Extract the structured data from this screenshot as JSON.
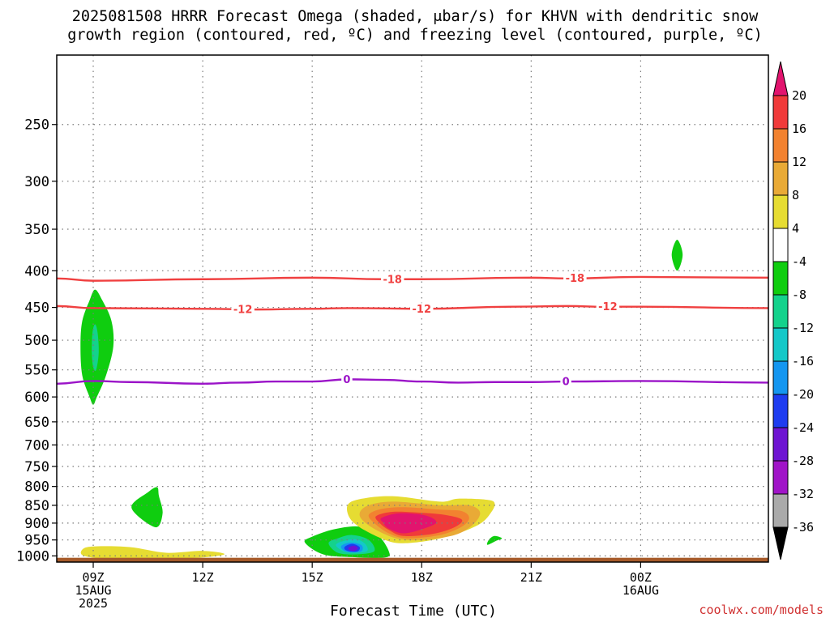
{
  "title_line1": "2025081508 HRRR Forecast Omega (shaded, μbar/s) for KHVN with dendritic snow",
  "title_line2": "growth region (contoured, red, ºC) and freezing level (contoured, purple, ºC)",
  "x_axis_title": "Forecast Time (UTC)",
  "credit": "coolwx.com/models",
  "chart_data": {
    "type": "heatmap",
    "title": "2025081508 HRRR Forecast Omega (shaded, μbar/s) for KHVN with dendritic snow growth region (contoured, red, ºC) and freezing level (contoured, purple, ºC)",
    "xlabel": "Forecast Time (UTC)",
    "ylabel": "",
    "x_range_hours_utc": [
      8,
      27.5
    ],
    "x_ticks": [
      {
        "hour": 9,
        "label": "09Z",
        "sub": [
          "15AUG",
          "2025"
        ]
      },
      {
        "hour": 12,
        "label": "12Z",
        "sub": []
      },
      {
        "hour": 15,
        "label": "15Z",
        "sub": []
      },
      {
        "hour": 18,
        "label": "18Z",
        "sub": []
      },
      {
        "hour": 21,
        "label": "21Z",
        "sub": []
      },
      {
        "hour": 24,
        "label": "00Z",
        "sub": [
          "16AUG"
        ]
      }
    ],
    "y_scale": "log-pressure, inverted",
    "y_range_hpa": [
      1020,
      200
    ],
    "y_ticks": [
      250,
      300,
      350,
      400,
      450,
      500,
      550,
      600,
      650,
      700,
      750,
      800,
      850,
      900,
      950,
      1000
    ],
    "grid": true,
    "colorbar": {
      "labels": [
        20,
        16,
        12,
        8,
        4,
        -4,
        -8,
        -12,
        -16,
        -20,
        -24,
        -28,
        -32,
        -36
      ],
      "bins": [
        {
          "from": 20,
          "to": 30,
          "color": "#e2146e"
        },
        {
          "from": 16,
          "to": 20,
          "color": "#f03a3a"
        },
        {
          "from": 12,
          "to": 16,
          "color": "#f28230"
        },
        {
          "from": 8,
          "to": 12,
          "color": "#e9aa36"
        },
        {
          "from": 4,
          "to": 8,
          "color": "#e6dc32"
        },
        {
          "from": -4,
          "to": 4,
          "color": "#ffffff"
        },
        {
          "from": -8,
          "to": -4,
          "color": "#0fcd0f"
        },
        {
          "from": -12,
          "to": -8,
          "color": "#14d28c"
        },
        {
          "from": -16,
          "to": -12,
          "color": "#14c8c8"
        },
        {
          "from": -20,
          "to": -16,
          "color": "#1496f0"
        },
        {
          "from": -24,
          "to": -20,
          "color": "#1e3cf0"
        },
        {
          "from": -28,
          "to": -24,
          "color": "#6e14d2"
        },
        {
          "from": -32,
          "to": -28,
          "color": "#a014c8"
        },
        {
          "from": -36,
          "to": -32,
          "color": "#aaaaaa"
        },
        {
          "from": -46,
          "to": -36,
          "color": "#000000"
        }
      ]
    },
    "shaded_regions": [
      {
        "name": "green-column-09z",
        "level": -6,
        "points": [
          [
            8.9,
            600
          ],
          [
            9.0,
            615
          ],
          [
            9.1,
            600
          ],
          [
            9.35,
            560
          ],
          [
            9.55,
            510
          ],
          [
            9.5,
            470
          ],
          [
            9.25,
            440
          ],
          [
            9.05,
            425
          ],
          [
            8.9,
            440
          ],
          [
            8.7,
            470
          ],
          [
            8.65,
            510
          ],
          [
            8.7,
            560
          ]
        ]
      },
      {
        "name": "teal-core-09z",
        "level": -10,
        "points": [
          [
            9.0,
            545
          ],
          [
            9.08,
            550
          ],
          [
            9.15,
            520
          ],
          [
            9.12,
            488
          ],
          [
            9.05,
            475
          ],
          [
            8.98,
            488
          ],
          [
            8.96,
            520
          ]
        ]
      },
      {
        "name": "green-blob-850",
        "level": -6,
        "points": [
          [
            10.05,
            857
          ],
          [
            10.7,
            912
          ],
          [
            10.9,
            872
          ],
          [
            10.8,
            825
          ],
          [
            10.75,
            802
          ],
          [
            10.5,
            815
          ]
        ]
      },
      {
        "name": "green-blob-400",
        "level": -6,
        "points": [
          [
            25.0,
            362
          ],
          [
            25.15,
            380
          ],
          [
            25.0,
            400
          ],
          [
            24.85,
            380
          ]
        ]
      },
      {
        "name": "green-blob-950",
        "level": -6,
        "points": [
          [
            19.8,
            965
          ],
          [
            20.05,
            952
          ],
          [
            20.2,
            945
          ],
          [
            20.0,
            938
          ],
          [
            19.85,
            948
          ]
        ]
      },
      {
        "name": "yellow-low-09z",
        "level": 5,
        "points": [
          [
            8.75,
            1000
          ],
          [
            8.7,
            980
          ],
          [
            9.0,
            970
          ],
          [
            10.0,
            972
          ],
          [
            11.0,
            990
          ],
          [
            12.0,
            984
          ],
          [
            12.6,
            994
          ],
          [
            12.0,
            1005
          ],
          [
            11.0,
            1010
          ],
          [
            9.5,
            1010
          ]
        ]
      },
      {
        "name": "neg-cell-950",
        "level": -6,
        "points": [
          [
            14.8,
            958
          ],
          [
            15.0,
            940
          ],
          [
            15.6,
            918
          ],
          [
            16.3,
            910
          ],
          [
            16.8,
            935
          ],
          [
            17.1,
            985
          ],
          [
            17.0,
            1005
          ],
          [
            16.1,
            1004
          ],
          [
            15.3,
            995
          ]
        ]
      },
      {
        "name": "neg-cell-950-teal",
        "level": -10,
        "points": [
          [
            15.45,
            960
          ],
          [
            15.7,
            945
          ],
          [
            16.1,
            935
          ],
          [
            16.55,
            950
          ],
          [
            16.7,
            985
          ],
          [
            16.2,
            995
          ],
          [
            15.7,
            990
          ]
        ]
      },
      {
        "name": "neg-cell-950-cyan",
        "level": -14,
        "points": [
          [
            15.65,
            965
          ],
          [
            15.9,
            952
          ],
          [
            16.2,
            948
          ],
          [
            16.45,
            962
          ],
          [
            16.5,
            985
          ],
          [
            16.1,
            990
          ],
          [
            15.85,
            985
          ]
        ]
      },
      {
        "name": "neg-cell-950-blue",
        "level": -18,
        "points": [
          [
            15.8,
            968
          ],
          [
            16.05,
            958
          ],
          [
            16.35,
            966
          ],
          [
            16.35,
            985
          ],
          [
            16.05,
            989
          ],
          [
            15.85,
            982
          ]
        ]
      },
      {
        "name": "neg-cell-950-royal",
        "level": -22,
        "points": [
          [
            15.9,
            970
          ],
          [
            16.1,
            962
          ],
          [
            16.3,
            972
          ],
          [
            16.25,
            985
          ],
          [
            16.05,
            986
          ],
          [
            15.9,
            980
          ]
        ]
      },
      {
        "name": "neg-cell-950-purple",
        "level": -26,
        "points": [
          [
            16.0,
            973
          ],
          [
            16.15,
            968
          ],
          [
            16.25,
            976
          ],
          [
            16.15,
            984
          ],
          [
            16.02,
            982
          ]
        ]
      },
      {
        "name": "pos-cell-yellow",
        "level": 5,
        "points": [
          [
            16.0,
            880
          ],
          [
            16.0,
            845
          ],
          [
            16.5,
            830
          ],
          [
            17.3,
            826
          ],
          [
            18.5,
            840
          ],
          [
            19.0,
            832
          ],
          [
            19.8,
            835
          ],
          [
            20.0,
            845
          ],
          [
            19.9,
            870
          ],
          [
            19.6,
            902
          ],
          [
            19.0,
            930
          ],
          [
            18.3,
            950
          ],
          [
            17.5,
            960
          ],
          [
            17.0,
            950
          ],
          [
            16.3,
            912
          ]
        ]
      },
      {
        "name": "pos-cell-gold",
        "level": 9,
        "points": [
          [
            16.3,
            878
          ],
          [
            16.5,
            852
          ],
          [
            17.2,
            840
          ],
          [
            18.5,
            850
          ],
          [
            19.3,
            850
          ],
          [
            19.6,
            870
          ],
          [
            19.4,
            905
          ],
          [
            18.9,
            935
          ],
          [
            18.0,
            950
          ],
          [
            17.3,
            945
          ],
          [
            16.6,
            910
          ]
        ]
      },
      {
        "name": "pos-cell-orange",
        "level": 13,
        "points": [
          [
            16.55,
            876
          ],
          [
            16.9,
            860
          ],
          [
            17.5,
            855
          ],
          [
            18.5,
            862
          ],
          [
            19.1,
            866
          ],
          [
            19.3,
            885
          ],
          [
            19.1,
            910
          ],
          [
            18.5,
            935
          ],
          [
            17.6,
            945
          ],
          [
            17.1,
            930
          ],
          [
            16.7,
            900
          ]
        ]
      },
      {
        "name": "pos-cell-red",
        "level": 17,
        "points": [
          [
            16.75,
            880
          ],
          [
            17.2,
            868
          ],
          [
            17.9,
            870
          ],
          [
            18.6,
            876
          ],
          [
            19.1,
            890
          ],
          [
            18.9,
            912
          ],
          [
            18.3,
            932
          ],
          [
            17.5,
            938
          ],
          [
            17.1,
            920
          ],
          [
            16.85,
            900
          ]
        ]
      },
      {
        "name": "pos-cell-magenta",
        "level": 22,
        "points": [
          [
            16.9,
            885
          ],
          [
            17.4,
            872
          ],
          [
            18.1,
            878
          ],
          [
            18.4,
            898
          ],
          [
            18.0,
            918
          ],
          [
            17.5,
            930
          ],
          [
            17.1,
            916
          ],
          [
            16.95,
            900
          ]
        ]
      }
    ],
    "contours": [
      {
        "name": "-18C isotherm",
        "color": "#f04040",
        "points": [
          [
            8,
            410
          ],
          [
            9,
            413
          ],
          [
            12,
            411
          ],
          [
            15,
            409
          ],
          [
            17,
            411
          ],
          [
            18,
            411
          ],
          [
            21,
            409
          ],
          [
            22,
            410
          ],
          [
            24,
            408
          ],
          [
            27.5,
            409
          ]
        ],
        "labels": [
          {
            "text": "-18",
            "x": 17.2
          },
          {
            "text": "-18",
            "x": 22.2
          }
        ]
      },
      {
        "name": "-12C isotherm",
        "color": "#f04040",
        "points": [
          [
            8,
            448
          ],
          [
            9,
            451
          ],
          [
            12,
            452
          ],
          [
            13.5,
            453
          ],
          [
            15,
            452
          ],
          [
            16,
            451
          ],
          [
            18,
            452
          ],
          [
            20.5,
            449
          ],
          [
            22,
            448
          ],
          [
            23,
            449
          ],
          [
            24,
            449
          ],
          [
            27.5,
            451
          ]
        ],
        "labels": [
          {
            "text": "-12",
            "x": 13.1
          },
          {
            "text": "-12",
            "x": 18.0
          },
          {
            "text": "-12",
            "x": 23.1
          }
        ]
      },
      {
        "name": "0C freezing level",
        "color": "#9b14c8",
        "points": [
          [
            8,
            575
          ],
          [
            9,
            570
          ],
          [
            10,
            572
          ],
          [
            12,
            575
          ],
          [
            13,
            573
          ],
          [
            14,
            571
          ],
          [
            15,
            571
          ],
          [
            16,
            567
          ],
          [
            17,
            568
          ],
          [
            18,
            571
          ],
          [
            19,
            573
          ],
          [
            20,
            572
          ],
          [
            21,
            572
          ],
          [
            22,
            571
          ],
          [
            24,
            570
          ],
          [
            27.5,
            573
          ]
        ],
        "labels": [
          {
            "text": "0",
            "x": 15.95
          },
          {
            "text": "0",
            "x": 21.95
          }
        ]
      }
    ],
    "ground_band": {
      "from_hpa": 1006,
      "to_hpa": 1020,
      "color": "#a65a2a"
    }
  }
}
